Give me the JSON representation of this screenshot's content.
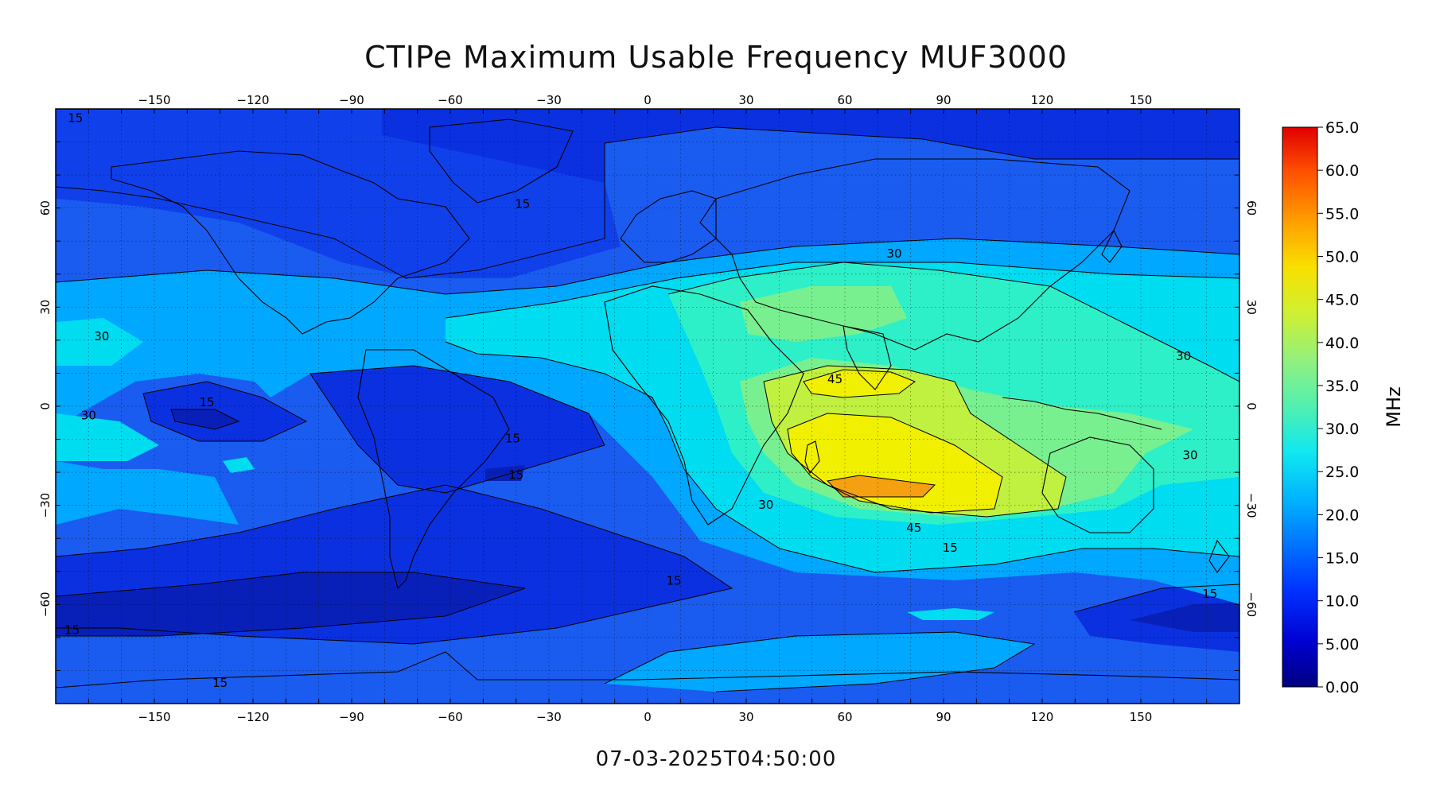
{
  "title": "CTIPe Maximum Usable Frequency MUF3000",
  "timestamp": "07-03-2025T04:50:00",
  "map": {
    "lon_range": [
      -180,
      180
    ],
    "lat_range": [
      -90,
      90
    ],
    "lon_ticks": [
      -150,
      -120,
      -90,
      -60,
      -30,
      0,
      30,
      60,
      90,
      120,
      150
    ],
    "lat_ticks": [
      -60,
      -30,
      0,
      30,
      60
    ],
    "grid": true,
    "contour_labels": [
      {
        "text": "15",
        "lon": -174,
        "lat": 86
      },
      {
        "text": "15",
        "lon": 92,
        "lat": -44
      },
      {
        "text": "15",
        "lon": -38,
        "lat": 60
      },
      {
        "text": "30",
        "lon": -166,
        "lat": 20
      },
      {
        "text": "30",
        "lon": -170,
        "lat": -4
      },
      {
        "text": "15",
        "lon": -134,
        "lat": 0
      },
      {
        "text": "15",
        "lon": -41,
        "lat": -11
      },
      {
        "text": "15",
        "lon": -40,
        "lat": -22
      },
      {
        "text": "30",
        "lon": 75,
        "lat": 45
      },
      {
        "text": "30",
        "lon": 163,
        "lat": 14
      },
      {
        "text": "30",
        "lon": 165,
        "lat": -16
      },
      {
        "text": "45",
        "lon": 57,
        "lat": 7
      },
      {
        "text": "45",
        "lon": 81,
        "lat": -38
      },
      {
        "text": "30",
        "lon": 36,
        "lat": -31
      },
      {
        "text": "15",
        "lon": 8,
        "lat": -54
      },
      {
        "text": "15",
        "lon": 171,
        "lat": -58
      },
      {
        "text": "15",
        "lon": -175,
        "lat": -69
      },
      {
        "text": "15",
        "lon": -130,
        "lat": -85
      }
    ]
  },
  "colorbar": {
    "unit": "MHz",
    "min": 0,
    "max": 65,
    "labels": [
      "65.0",
      "60.0",
      "55.0",
      "50.0",
      "45.0",
      "40.0",
      "35.0",
      "30.0",
      "25.0",
      "20.0",
      "15.0",
      "10.0",
      "5.00",
      "0.00"
    ],
    "colors": [
      "#000080",
      "#0000e0",
      "#0044ff",
      "#0088ff",
      "#00c4ff",
      "#1ef0e0",
      "#60f0a0",
      "#a0f070",
      "#e0f020",
      "#ffc000",
      "#ff8000",
      "#ff4000",
      "#e00000"
    ]
  }
}
